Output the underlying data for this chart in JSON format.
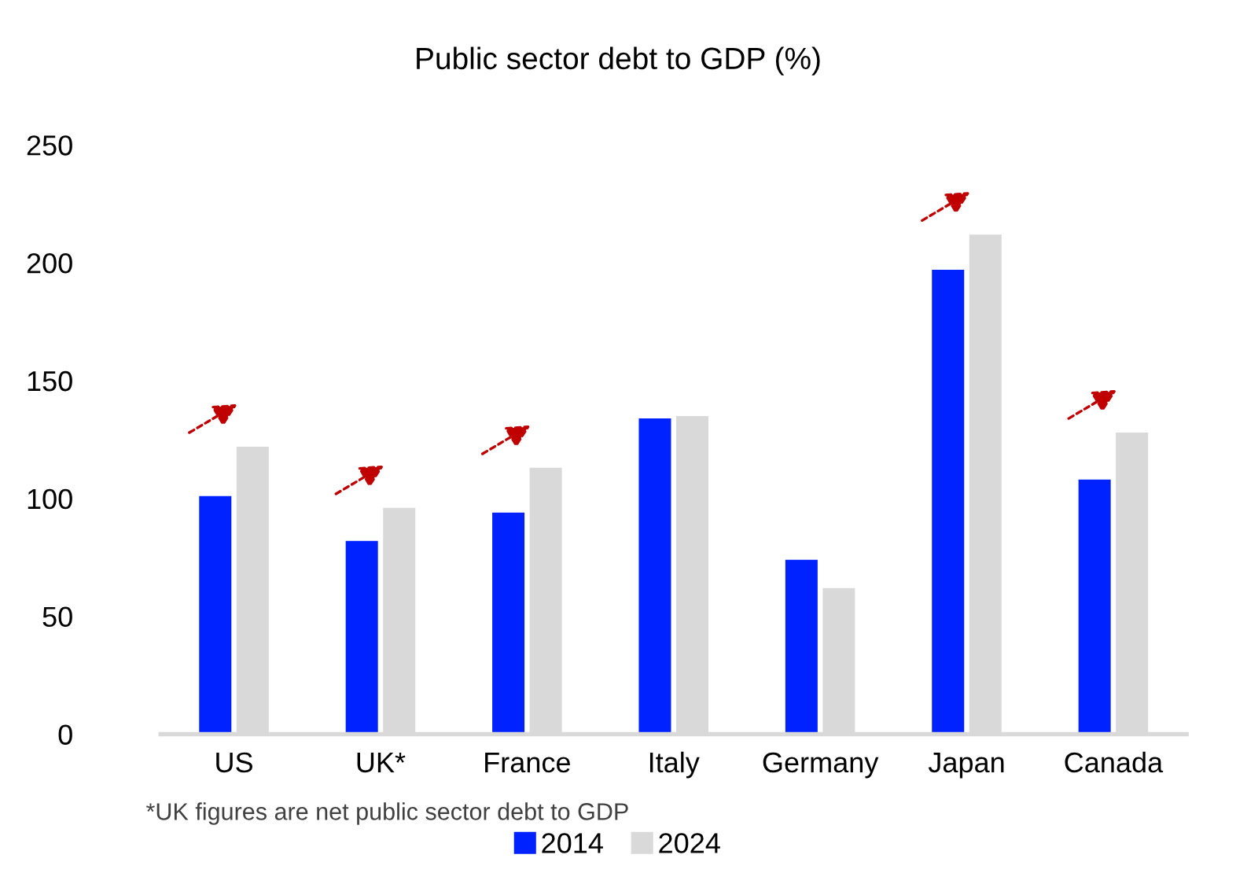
{
  "chart_data": {
    "type": "bar",
    "title": "Public sector debt to GDP (%)",
    "categories": [
      "US",
      "UK*",
      "France",
      "Italy",
      "Germany",
      "Japan",
      "Canada"
    ],
    "series": [
      {
        "name": "2014",
        "color": "#0022ff",
        "values": [
          101,
          82,
          94,
          134,
          74,
          197,
          108
        ]
      },
      {
        "name": "2024",
        "color": "#d9d9d9",
        "values": [
          122,
          96,
          113,
          135,
          62,
          212,
          128
        ]
      }
    ],
    "ylim": [
      0,
      250
    ],
    "yticks": [
      0,
      50,
      100,
      150,
      200,
      250
    ],
    "grid": false,
    "legend": "bottom",
    "annotations": [
      "*UK figures are net public sector debt to GDP"
    ]
  }
}
